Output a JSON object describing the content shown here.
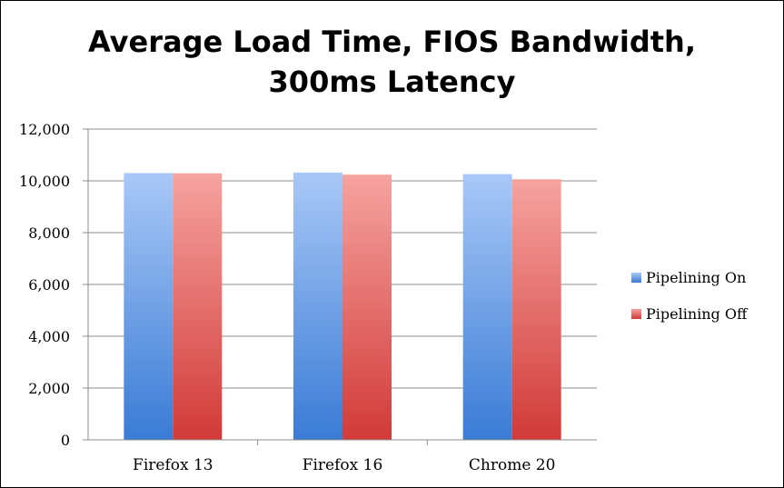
{
  "chart_data": {
    "type": "bar",
    "title_lines": [
      "Average Load Time, FIOS Bandwidth,",
      "300ms Latency"
    ],
    "categories": [
      "Firefox 13",
      "Firefox 16",
      "Chrome 20"
    ],
    "series": [
      {
        "name": "Pipelining On",
        "values": [
          10300,
          10320,
          10260
        ],
        "color_top": "#a9c8f7",
        "color_bottom": "#3a7bd5"
      },
      {
        "name": "Pipelining Off",
        "values": [
          10290,
          10240,
          10060
        ],
        "color_top": "#f6a3a0",
        "color_bottom": "#d13a38"
      }
    ],
    "ylim": [
      0,
      12000
    ],
    "yticks": [
      0,
      2000,
      4000,
      6000,
      8000,
      10000,
      12000
    ],
    "ytick_labels": [
      "0",
      "2,000",
      "4,000",
      "6,000",
      "8,000",
      "10,000",
      "12,000"
    ],
    "grid": true,
    "legend_position": "right"
  }
}
